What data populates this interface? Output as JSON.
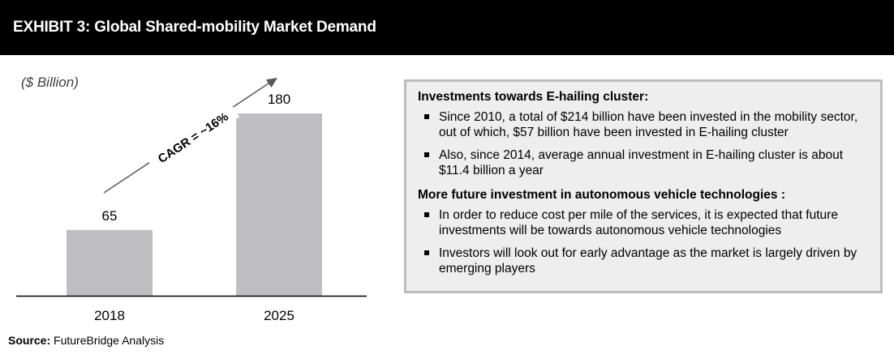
{
  "header": {
    "title": "EXHIBIT 3: Global Shared-mobility Market Demand"
  },
  "unit_label": "($ Billion)",
  "chart_data": {
    "type": "bar",
    "categories": [
      "2018",
      "2025"
    ],
    "values": [
      65,
      180
    ],
    "data_labels": [
      "65",
      "180"
    ],
    "ylim": [
      0,
      200
    ],
    "annotation": "CAGR = ~16%",
    "grid": false,
    "bar_color": "#bfbec3"
  },
  "info_box": {
    "sections": [
      {
        "heading": "Investments towards E-hailing cluster:",
        "bullets": [
          "Since 2010, a total of $214 billion have been invested in the mobility sector, out of which, $57 billion have been invested in E-hailing cluster",
          "Also, since 2014, average annual investment in E-hailing cluster is about $11.4 billion a year"
        ]
      },
      {
        "heading": "More future investment in autonomous vehicle technologies :",
        "bullets": [
          "In order to reduce cost per mile of the services, it is expected that future investments will be towards autonomous vehicle technologies",
          "Investors will look out for early advantage as the market is largely driven by emerging players"
        ]
      }
    ]
  },
  "source": {
    "label": "Source:",
    "text": "FutureBridge Analysis"
  }
}
